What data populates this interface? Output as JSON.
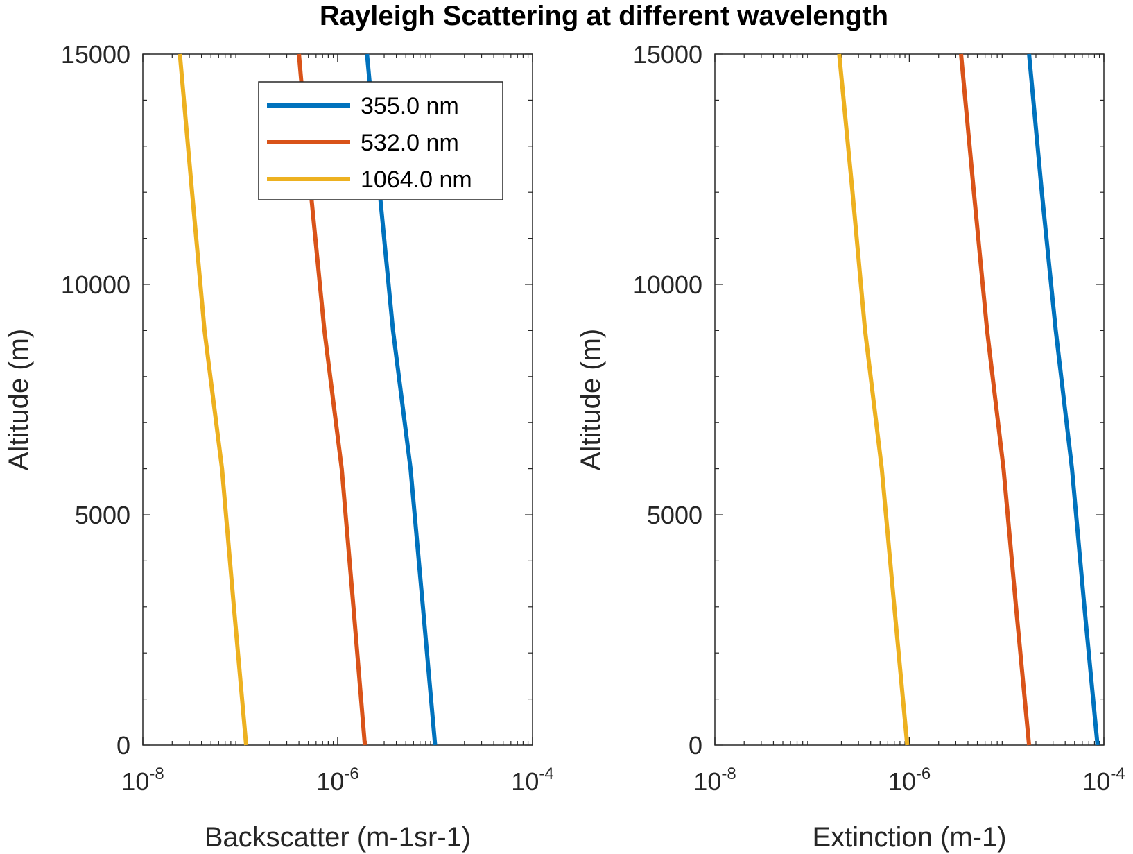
{
  "figure": {
    "title": "Rayleigh Scattering at different wavelength"
  },
  "legend": {
    "location": "top-right-of-left-panel",
    "entries": [
      "355.0 nm",
      "532.0 nm",
      "1064.0 nm"
    ]
  },
  "colors": {
    "355.0 nm": "#0072BD",
    "532.0 nm": "#D95319",
    "1064.0 nm": "#EDB120",
    "axes": "#262626"
  },
  "chart_data": [
    {
      "type": "line",
      "xlabel": "Backscatter (m-1sr-1)",
      "ylabel": "Altitude (m)",
      "xscale": "log",
      "xlim": [
        1e-08,
        0.0001
      ],
      "ylim": [
        0,
        15000
      ],
      "xticks": [
        {
          "value": 1e-08,
          "base": "10",
          "exp": "-8"
        },
        {
          "value": 1e-06,
          "base": "10",
          "exp": "-6"
        },
        {
          "value": 0.0001,
          "base": "10",
          "exp": "-4"
        }
      ],
      "yticks": [
        "0",
        "5000",
        "10000",
        "15000"
      ],
      "grid": false,
      "series": [
        {
          "name": "355.0 nm",
          "x": [
            1e-05,
            7.5e-06,
            5.6e-06,
            3.7e-06,
            2.7e-06,
            2e-06
          ],
          "y": [
            0,
            3000,
            6000,
            9000,
            12000,
            15000
          ]
        },
        {
          "name": "532.0 nm",
          "x": [
            1.9e-06,
            1.45e-06,
            1.1e-06,
            7.3e-07,
            5.3e-07,
            4e-07
          ],
          "y": [
            0,
            3000,
            6000,
            9000,
            12000,
            15000
          ]
        },
        {
          "name": "1064.0 nm",
          "x": [
            1.15e-07,
            8.6e-08,
            6.5e-08,
            4.3e-08,
            3.2e-08,
            2.4e-08
          ],
          "y": [
            0,
            3000,
            6000,
            9000,
            12000,
            15000
          ]
        }
      ]
    },
    {
      "type": "line",
      "xlabel": "Extinction (m-1)",
      "ylabel": "Altitude (m)",
      "xscale": "log",
      "xlim": [
        1e-08,
        0.0001
      ],
      "ylim": [
        0,
        15000
      ],
      "xticks": [
        {
          "value": 1e-08,
          "base": "10",
          "exp": "-8"
        },
        {
          "value": 1e-06,
          "base": "10",
          "exp": "-6"
        },
        {
          "value": 0.0001,
          "base": "10",
          "exp": "-4"
        }
      ],
      "yticks": [
        "0",
        "5000",
        "10000",
        "15000"
      ],
      "grid": false,
      "series": [
        {
          "name": "355.0 nm",
          "x": [
            8.6e-05,
            6.3e-05,
            4.7e-05,
            3.2e-05,
            2.3e-05,
            1.7e-05
          ],
          "y": [
            0,
            3000,
            6000,
            9000,
            12000,
            15000
          ]
        },
        {
          "name": "532.0 nm",
          "x": [
            1.7e-05,
            1.25e-05,
            9.3e-06,
            6.3e-06,
            4.6e-06,
            3.4e-06
          ],
          "y": [
            0,
            3000,
            6000,
            9000,
            12000,
            15000
          ]
        },
        {
          "name": "1064.0 nm",
          "x": [
            9.5e-07,
            7e-07,
            5.2e-07,
            3.5e-07,
            2.6e-07,
            1.9e-07
          ],
          "y": [
            0,
            3000,
            6000,
            9000,
            12000,
            15000
          ]
        }
      ]
    }
  ]
}
